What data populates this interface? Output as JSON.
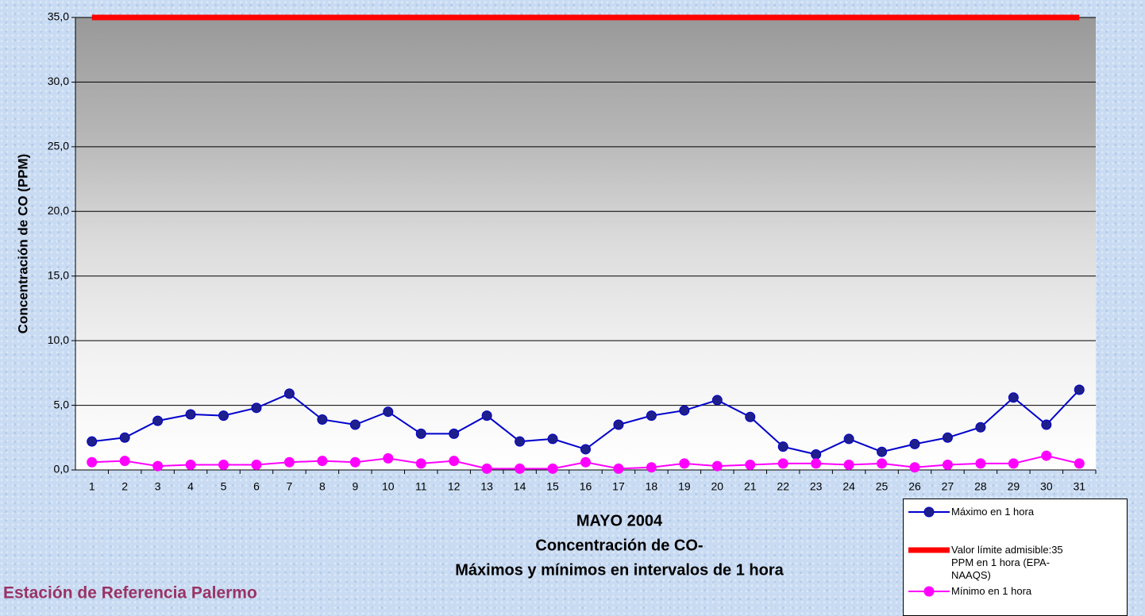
{
  "chart_data": {
    "type": "line",
    "title_lines": [
      "MAYO 2004",
      "Concentración de CO-",
      "Máximos y mínimos en intervalos de 1 hora"
    ],
    "ylabel": "Concentración de CO (PPM)",
    "annotation": "Estación de Referencia Palermo",
    "categories": [
      "1",
      "2",
      "3",
      "4",
      "5",
      "6",
      "7",
      "8",
      "9",
      "10",
      "11",
      "12",
      "13",
      "14",
      "15",
      "16",
      "17",
      "18",
      "19",
      "20",
      "21",
      "22",
      "23",
      "24",
      "25",
      "26",
      "27",
      "28",
      "29",
      "30",
      "31"
    ],
    "series": [
      {
        "name": "Máximo en 1 hora",
        "color": "#0000cc",
        "marker_color": "#1f1f8c",
        "marker": true,
        "values": [
          2.2,
          2.5,
          3.8,
          4.3,
          4.2,
          4.8,
          5.9,
          3.9,
          3.5,
          4.5,
          2.8,
          2.8,
          4.2,
          2.2,
          2.4,
          1.6,
          3.5,
          4.2,
          4.6,
          5.4,
          4.1,
          1.8,
          1.2,
          2.4,
          1.4,
          2.0,
          2.5,
          3.3,
          5.6,
          3.5,
          6.2
        ]
      },
      {
        "name": "Valor límite admisible:35 PPM en 1 hora (EPA- NAAQS)",
        "color": "#ff0000",
        "marker": false,
        "values": [
          35,
          35,
          35,
          35,
          35,
          35,
          35,
          35,
          35,
          35,
          35,
          35,
          35,
          35,
          35,
          35,
          35,
          35,
          35,
          35,
          35,
          35,
          35,
          35,
          35,
          35,
          35,
          35,
          35,
          35,
          35
        ]
      },
      {
        "name": "Mínimo en 1 hora",
        "color": "#ff00ff",
        "marker_color": "#ff00ff",
        "marker": true,
        "values": [
          0.6,
          0.7,
          0.3,
          0.4,
          0.4,
          0.4,
          0.6,
          0.7,
          0.6,
          0.9,
          0.5,
          0.7,
          0.1,
          0.1,
          0.1,
          0.6,
          0.1,
          0.2,
          0.5,
          0.3,
          0.4,
          0.5,
          0.5,
          0.4,
          0.5,
          0.2,
          0.4,
          0.5,
          0.5,
          1.1,
          0.5
        ]
      }
    ],
    "ylim": [
      0,
      35
    ],
    "yticks": [
      {
        "value": 0,
        "label": "0,0"
      },
      {
        "value": 5,
        "label": "5,0"
      },
      {
        "value": 10,
        "label": "10,0"
      },
      {
        "value": 15,
        "label": "15,0"
      },
      {
        "value": 20,
        "label": "20,0"
      },
      {
        "value": 25,
        "label": "25,0"
      },
      {
        "value": 30,
        "label": "30,0"
      },
      {
        "value": 35,
        "label": "35,0"
      }
    ],
    "grid": true
  }
}
